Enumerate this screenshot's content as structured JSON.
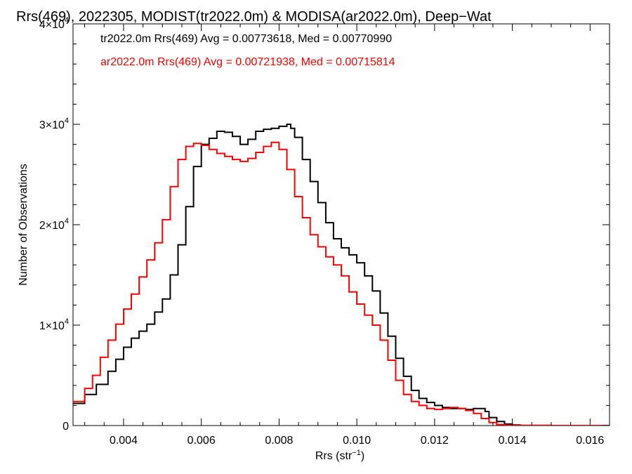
{
  "chart_data": {
    "type": "line",
    "title": "Rrs(469), 2022305, MODIST(tr2022.0m) & MODISA(ar2022.0m), Deep−Wat",
    "xlabel_base": "Rrs (str",
    "xlabel_sup": "−1",
    "xlabel_end": ")",
    "ylabel": "Number of Observations",
    "xlim": [
      0.0027,
      0.0165
    ],
    "ylim": [
      0,
      40000
    ],
    "x_ticks": [
      {
        "value": 0.004,
        "label": "0.004"
      },
      {
        "value": 0.006,
        "label": "0.006"
      },
      {
        "value": 0.008,
        "label": "0.008"
      },
      {
        "value": 0.01,
        "label": "0.010"
      },
      {
        "value": 0.012,
        "label": "0.012"
      },
      {
        "value": 0.014,
        "label": "0.014"
      },
      {
        "value": 0.016,
        "label": "0.016"
      }
    ],
    "y_ticks": [
      {
        "value": 0,
        "mantissa": "0",
        "exp": ""
      },
      {
        "value": 10000,
        "mantissa": "1×10",
        "exp": "4"
      },
      {
        "value": 20000,
        "mantissa": "2×10",
        "exp": "4"
      },
      {
        "value": 30000,
        "mantissa": "3×10",
        "exp": "4"
      },
      {
        "value": 40000,
        "mantissa": "4×10",
        "exp": "4"
      }
    ],
    "annotations": [
      {
        "text": "tr2022.0m Rrs(469) Avg = 0.00773618, Med = 0.00770990",
        "color": "#000000"
      },
      {
        "text": "ar2022.0m Rrs(469) Avg = 0.00721938, Med = 0.00715814",
        "color": "#ff0000"
      }
    ],
    "grid": false,
    "series": [
      {
        "color": "#000000",
        "x": [
          0.0027,
          0.003,
          0.0033,
          0.0036,
          0.0038,
          0.004,
          0.0042,
          0.0044,
          0.0046,
          0.0048,
          0.005,
          0.0052,
          0.0054,
          0.0056,
          0.0058,
          0.006,
          0.0062,
          0.0064,
          0.0066,
          0.0068,
          0.007,
          0.0072,
          0.0074,
          0.0076,
          0.0078,
          0.008,
          0.0082,
          0.0083,
          0.0084,
          0.0086,
          0.0088,
          0.009,
          0.0092,
          0.0094,
          0.0096,
          0.0098,
          0.01,
          0.0102,
          0.0104,
          0.0106,
          0.0108,
          0.011,
          0.0112,
          0.0114,
          0.0116,
          0.0118,
          0.012,
          0.0122,
          0.0124,
          0.0126,
          0.0128,
          0.013,
          0.0132,
          0.0133,
          0.0134,
          0.0136,
          0.0138,
          0.014,
          0.0142,
          0.015,
          0.0165
        ],
        "y": [
          2200,
          3100,
          4100,
          5400,
          6600,
          7800,
          8700,
          9400,
          10100,
          11300,
          12600,
          15000,
          18000,
          21800,
          25800,
          28000,
          28600,
          29300,
          29200,
          28800,
          28000,
          28500,
          29300,
          29500,
          29600,
          29800,
          30000,
          29600,
          28700,
          26500,
          24300,
          22200,
          20200,
          18600,
          17700,
          17000,
          16200,
          14900,
          13400,
          11200,
          8900,
          6700,
          4900,
          3500,
          2700,
          2300,
          2000,
          1800,
          1700,
          1700,
          1600,
          1700,
          1700,
          1400,
          800,
          400,
          150,
          50,
          20,
          0,
          0
        ]
      },
      {
        "color": "#ff0000",
        "x": [
          0.0027,
          0.003,
          0.0032,
          0.0034,
          0.0036,
          0.0038,
          0.004,
          0.0042,
          0.0044,
          0.0046,
          0.0048,
          0.005,
          0.0052,
          0.0054,
          0.0056,
          0.0058,
          0.006,
          0.0062,
          0.0064,
          0.0066,
          0.0068,
          0.007,
          0.0072,
          0.0074,
          0.0076,
          0.0078,
          0.008,
          0.0082,
          0.0084,
          0.0086,
          0.0088,
          0.009,
          0.0092,
          0.0094,
          0.0096,
          0.0098,
          0.01,
          0.0102,
          0.0104,
          0.0106,
          0.0108,
          0.011,
          0.0112,
          0.0114,
          0.0116,
          0.0118,
          0.012,
          0.0122,
          0.0124,
          0.0126,
          0.0128,
          0.013,
          0.0132,
          0.0134,
          0.0136,
          0.0138,
          0.014,
          0.0165
        ],
        "y": [
          2400,
          3700,
          5000,
          6800,
          8500,
          10100,
          11600,
          13100,
          14800,
          16500,
          18200,
          20500,
          23800,
          26500,
          27800,
          28100,
          27900,
          27500,
          27100,
          26800,
          26500,
          26300,
          26600,
          27200,
          27800,
          28200,
          27500,
          25500,
          22800,
          20700,
          19000,
          17800,
          16800,
          16000,
          14900,
          13300,
          12100,
          11000,
          10000,
          8500,
          6500,
          4500,
          3100,
          2400,
          2000,
          1700,
          1600,
          1700,
          1800,
          1700,
          1500,
          1200,
          700,
          300,
          100,
          30,
          0,
          0
        ]
      }
    ]
  }
}
